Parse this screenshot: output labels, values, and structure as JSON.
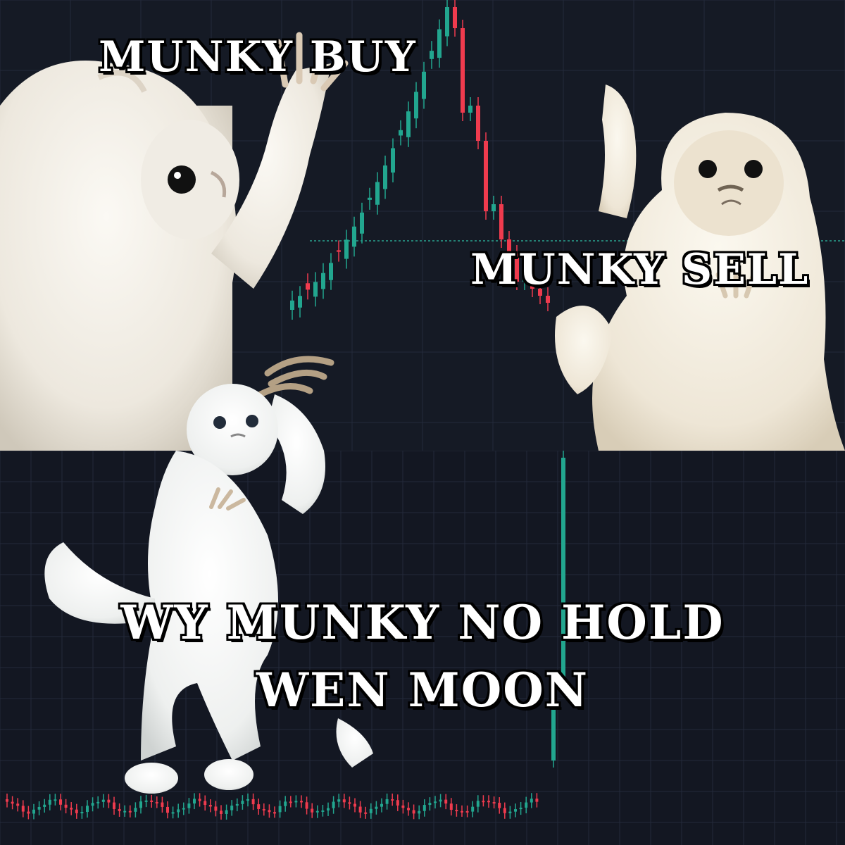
{
  "meme": {
    "captions": {
      "top_left": "MUNKY BUY",
      "top_right": "MUNKY SELL",
      "bottom_line1": "WY MUNKY NO HOLD",
      "bottom_line2": "WEN MOON"
    }
  },
  "colors": {
    "background": "#131722",
    "grid": "#232a3a",
    "up_candle": "#22a68f",
    "down_candle": "#ef3b4e",
    "reference_line": "#2aa28e",
    "fur": "#f3efe6",
    "caption_text": "#ffffff",
    "caption_outline": "#000000"
  },
  "icons": {
    "top_left_figure": "fluffy-white-cat-arms-raised-icon",
    "top_right_figure": "fluffy-white-cat-hand-up-icon",
    "bottom_figure": "fluffy-white-cat-dancing-icon"
  }
}
